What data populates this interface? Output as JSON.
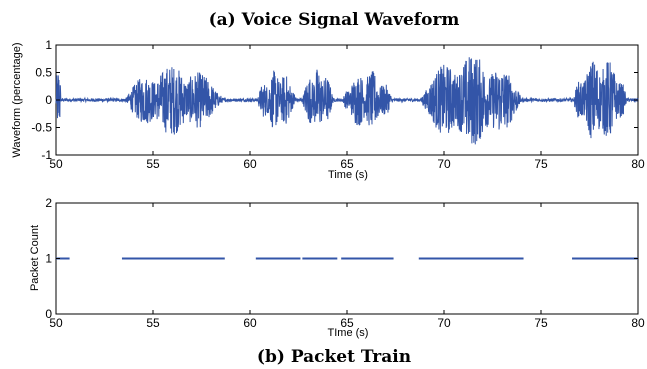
{
  "chart_data": [
    {
      "type": "line",
      "title": "(a) Voice Signal Waveform",
      "xlabel": "Time (s)",
      "ylabel": "Waveform (percentage)",
      "xlim": [
        50,
        80
      ],
      "ylim": [
        -1,
        1
      ],
      "x_ticks": [
        "50",
        "55",
        "60",
        "65",
        "70",
        "75",
        "80"
      ],
      "y_ticks": [
        "-1",
        "-0.5",
        "0",
        "0.5",
        "1"
      ],
      "series_color": "#3355a8",
      "noise_floor_amplitude": 0.03,
      "bursts": [
        {
          "start": 50.0,
          "end": 50.25,
          "peak": 0.75
        },
        {
          "start": 53.6,
          "end": 58.6,
          "peak": 0.65
        },
        {
          "start": 60.4,
          "end": 62.4,
          "peak": 0.55
        },
        {
          "start": 62.7,
          "end": 64.3,
          "peak": 0.6
        },
        {
          "start": 64.8,
          "end": 67.3,
          "peak": 0.55
        },
        {
          "start": 68.8,
          "end": 74.0,
          "peak": 0.85
        },
        {
          "start": 76.7,
          "end": 79.4,
          "peak": 0.8
        }
      ]
    },
    {
      "type": "line",
      "title": "(b) Packet Train",
      "xlabel": "TIme (s)",
      "ylabel": "Packet Count",
      "xlim": [
        50,
        80
      ],
      "ylim": [
        0,
        2
      ],
      "x_ticks": [
        "50",
        "55",
        "60",
        "65",
        "70",
        "75",
        "80"
      ],
      "y_ticks": [
        "0",
        "1",
        "2"
      ],
      "series_color": "#3355a8",
      "value": 1,
      "segments": [
        [
          50.0,
          50.7
        ],
        [
          53.4,
          58.7
        ],
        [
          60.3,
          62.6
        ],
        [
          62.7,
          64.5
        ],
        [
          64.7,
          67.4
        ],
        [
          68.7,
          74.1
        ],
        [
          76.6,
          80.0
        ]
      ]
    }
  ]
}
